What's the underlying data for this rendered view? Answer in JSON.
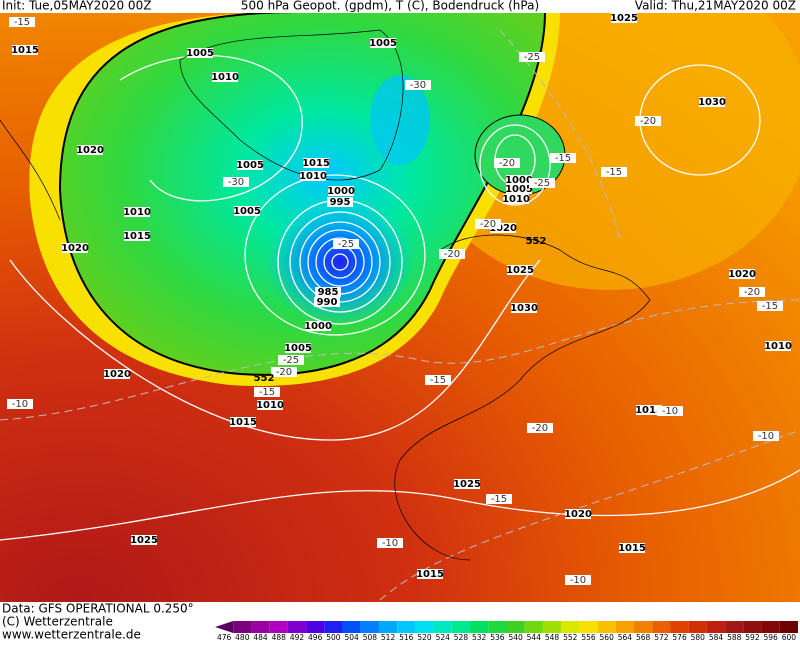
{
  "header": {
    "init": "Init: Tue,05MAY2020 00Z",
    "title": "500 hPa Geopot. (gpdm), T (C), Bodendruck (hPa)",
    "valid": "Valid: Thu,21MAY2020 00Z"
  },
  "footer": {
    "data": "Data: GFS OPERATIONAL 0.250°",
    "copyright": "(C) Wetterzentrale",
    "url": "www.wetterzentrale.de"
  },
  "colorbar": {
    "ticks": [
      476,
      480,
      484,
      488,
      492,
      496,
      500,
      504,
      508,
      512,
      516,
      520,
      524,
      528,
      532,
      536,
      540,
      544,
      548,
      552,
      556,
      560,
      564,
      568,
      572,
      576,
      580,
      584,
      588,
      592,
      596,
      600
    ],
    "colors": [
      "#5a0060",
      "#7a0080",
      "#9a00a0",
      "#b000c0",
      "#8000d0",
      "#5000e0",
      "#2020f0",
      "#0050f8",
      "#0080ff",
      "#00a8ff",
      "#00c8ff",
      "#00e0f0",
      "#00e8c0",
      "#00e890",
      "#00e060",
      "#20d840",
      "#40d020",
      "#70d810",
      "#a0e000",
      "#d8e800",
      "#f8e000",
      "#f8c000",
      "#f8a000",
      "#f08000",
      "#e86000",
      "#e04000",
      "#d03000",
      "#c02010",
      "#a01818",
      "#901010",
      "#800808",
      "#700000"
    ]
  },
  "map": {
    "isobar_labels": [
      "1015",
      "1005",
      "1005",
      "1010",
      "1020",
      "1005",
      "1015",
      "1010",
      "1000",
      "995",
      "1005",
      "1010",
      "1015",
      "1020",
      "1000",
      "1005",
      "1010",
      "1020",
      "1025",
      "1030",
      "1030",
      "1020",
      "1010",
      "1000",
      "1005",
      "1010",
      "1015",
      "1020",
      "1015",
      "1025",
      "1020",
      "1025",
      "1015",
      "1015",
      "1025",
      "990",
      "985"
    ],
    "temperature_labels": [
      "-15",
      "-30",
      "-25",
      "-30",
      "-20",
      "-15",
      "-20",
      "-15",
      "-25",
      "-20",
      "-20",
      "-25",
      "-20",
      "-15",
      "-20",
      "-25",
      "-15",
      "-15",
      "-10",
      "-10",
      "-20",
      "-10",
      "-15",
      "-10",
      "-10"
    ],
    "geopotential_labels": [
      "552",
      "552"
    ]
  }
}
